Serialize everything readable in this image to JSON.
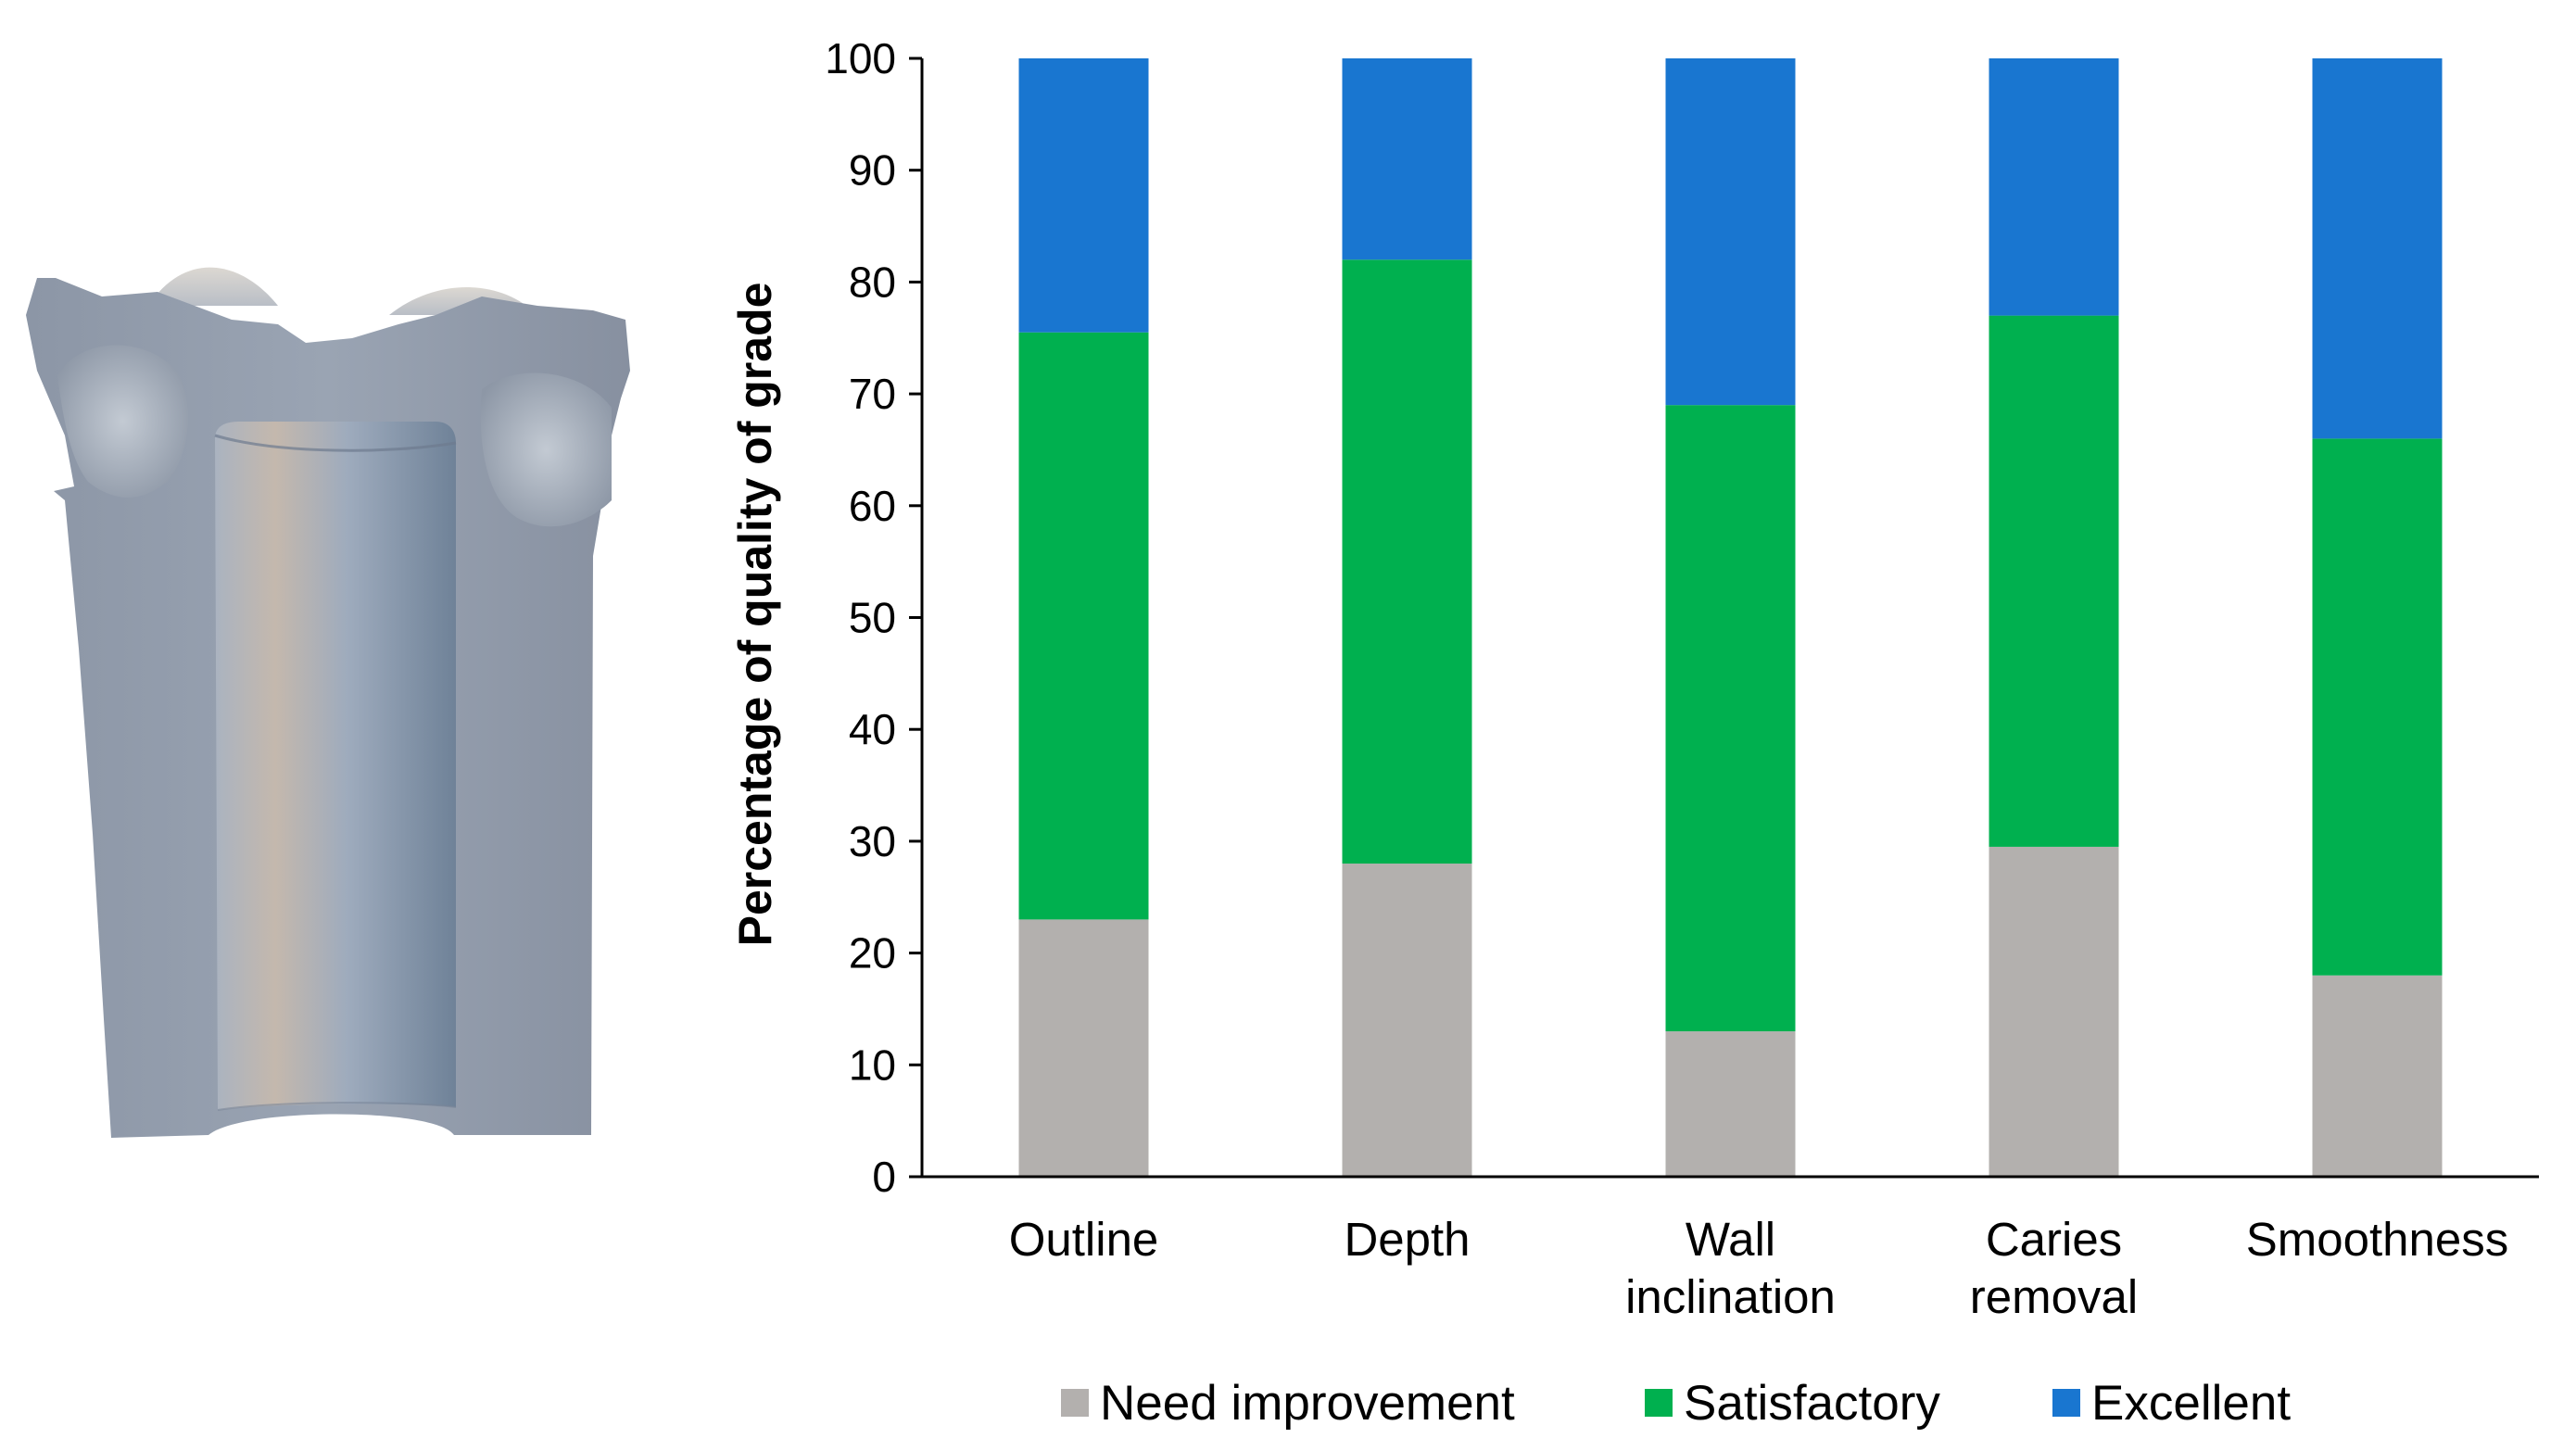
{
  "chart_data": {
    "type": "bar",
    "stacked": true,
    "categories": [
      "Outline",
      "Depth",
      "Wall inclination",
      "Caries removal",
      "Smoothness"
    ],
    "category_lines": [
      [
        "Outline"
      ],
      [
        "Depth"
      ],
      [
        "Wall",
        "inclination"
      ],
      [
        "Caries",
        "removal"
      ],
      [
        "Smoothness"
      ]
    ],
    "series": [
      {
        "name": "Need improvement",
        "color": "#b3b0ae",
        "values": [
          23,
          28,
          13,
          29.5,
          18
        ]
      },
      {
        "name": "Satisfactory",
        "color": "#00b04f",
        "values": [
          52.5,
          54,
          56,
          47.5,
          48
        ]
      },
      {
        "name": "Excellent",
        "color": "#1976d0",
        "values": [
          24.5,
          18,
          31,
          23,
          34
        ]
      }
    ],
    "ylabel": "Percentage of quality of grade",
    "xlabel": "",
    "ylim": [
      0,
      100
    ],
    "yticks": [
      "0",
      "10",
      "20",
      "30",
      "40",
      "50",
      "60",
      "70",
      "80",
      "90",
      "100"
    ],
    "grid": false,
    "legend_position": "bottom"
  },
  "illustration": {
    "name": "tooth-cavity-cross-section-model",
    "colors": {
      "body": "#8f9aaa",
      "light": "#b7c0cc",
      "inner": "#7d8ea6"
    }
  }
}
